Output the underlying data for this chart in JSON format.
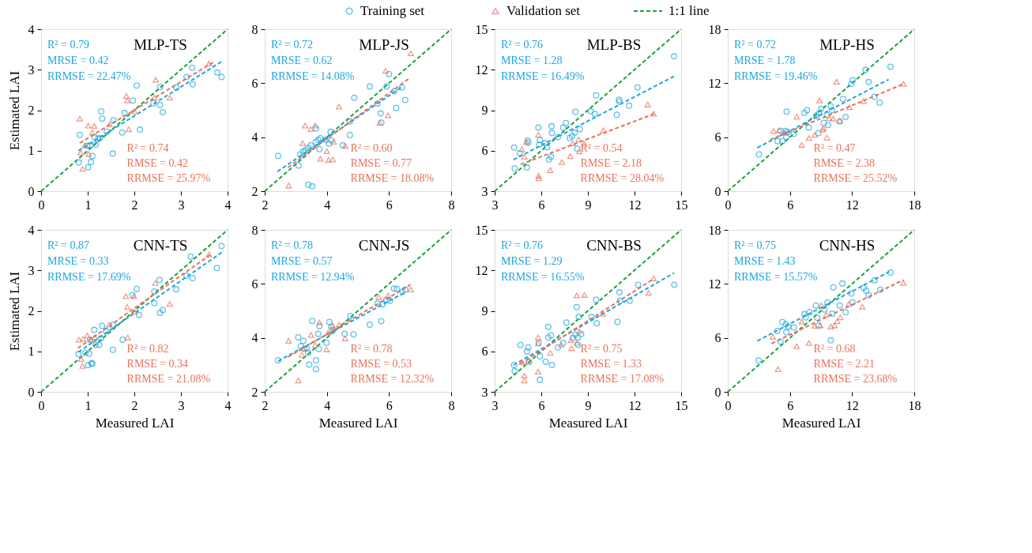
{
  "chart_data": [
    {
      "type": "scatter",
      "title": "MLP-TS",
      "ylabel": "Estimated LAI",
      "xlim": [
        0,
        4
      ],
      "ylim": [
        0,
        4
      ],
      "xticks": [
        0,
        1,
        2,
        3,
        4
      ],
      "yticks": [
        0,
        1,
        2,
        3,
        4
      ],
      "legend": "top",
      "annotations": [
        "R² = 0.79",
        "MRSE = 0.42",
        "RRMSE = 22.47%",
        "R² = 0.74",
        "RMSE = 0.42",
        "RRMSE = 25.97%"
      ],
      "series": [
        {
          "name": "Training set",
          "type": "scatter",
          "marker": "circle",
          "color": "#1fa6e0",
          "x": [
            0.83,
            0.81,
            1.01,
            1.07,
            1.1,
            0.99,
            1.05,
            1.15,
            1.17,
            1.21,
            1.26,
            1.29,
            1.31,
            1.41,
            1.55,
            1.54,
            1.74,
            1.79,
            1.97,
            2.05,
            2.12,
            2.41,
            2.55,
            2.55,
            2.61,
            2.9,
            3.12,
            3.24,
            3.25,
            3.78,
            3.87
          ],
          "values": [
            1.39,
            0.71,
            0.59,
            0.72,
            0.87,
            1.12,
            1.13,
            1.33,
            1.15,
            1.29,
            1.31,
            1.97,
            1.79,
            1.47,
            1.75,
            0.93,
            1.45,
            1.93,
            2.24,
            2.61,
            1.52,
            2.17,
            2.57,
            2.13,
            1.95,
            2.56,
            2.82,
            3.05,
            2.64,
            2.93,
            2.82
          ]
        },
        {
          "name": "Validation set",
          "type": "scatter",
          "marker": "triangle",
          "color": "#e8735c",
          "x": [
            0.83,
            0.89,
            0.85,
            0.94,
            1.01,
            1.02,
            1.1,
            1.14,
            1.47,
            1.83,
            1.85,
            1.88,
            2.0,
            2.43,
            2.46,
            2.76,
            3.6
          ],
          "values": [
            1.79,
            0.55,
            0.95,
            1.13,
            1.62,
            0.92,
            1.45,
            1.61,
            1.65,
            2.35,
            2.24,
            1.53,
            1.97,
            2.31,
            2.75,
            2.31,
            3.15
          ]
        },
        {
          "name": "1:1 line",
          "type": "line",
          "line_style": "dashed",
          "color": "#1aa23a",
          "x": [
            0,
            4
          ],
          "values": [
            0,
            4
          ]
        },
        {
          "type": "line",
          "line_style": "dashed",
          "color": "#1fa6e0",
          "x": [
            0.8,
            3.9
          ],
          "values": [
            1.0,
            3.22
          ]
        },
        {
          "type": "line",
          "line_style": "dashed",
          "color": "#e8735c",
          "x": [
            0.83,
            3.73
          ],
          "values": [
            1.19,
            3.21
          ]
        }
      ]
    },
    {
      "type": "scatter",
      "title": "MLP-JS",
      "xlim": [
        2,
        8
      ],
      "ylim": [
        2,
        8
      ],
      "xticks": [
        2,
        4,
        6,
        8
      ],
      "yticks": [
        2,
        4,
        6,
        8
      ],
      "annotations": [
        "R² = 0.72",
        "MRSE = 0.62",
        "RRMSE = 14.08%",
        "R² = 0.60",
        "RMSE = 0.77",
        "RRMSE = 18.08%"
      ],
      "series": [
        {
          "type": "scatter",
          "marker": "circle",
          "color": "#1fa6e0",
          "x": [
            2.43,
            3.09,
            3.14,
            3.24,
            3.31,
            3.4,
            3.48,
            3.4,
            3.53,
            3.65,
            3.65,
            3.72,
            3.79,
            3.76,
            3.95,
            4.07,
            4.12,
            4.14,
            4.51,
            4.74,
            4.74,
            4.88,
            5.38,
            5.63,
            5.73,
            5.75,
            5.92,
            6.0,
            6.17,
            6.23,
            6.42,
            6.52
          ],
          "values": [
            3.31,
            2.95,
            3.36,
            3.46,
            3.52,
            3.6,
            3.7,
            2.24,
            2.18,
            4.33,
            3.82,
            3.9,
            3.96,
            3.56,
            3.9,
            3.76,
            4.2,
            3.88,
            3.7,
            4.08,
            4.58,
            5.46,
            5.88,
            5.25,
            4.88,
            4.54,
            5.88,
            6.34,
            5.7,
            5.08,
            5.84,
            5.38
          ]
        },
        {
          "type": "scatter",
          "marker": "triangle",
          "color": "#e8735c",
          "x": [
            2.77,
            3.22,
            3.3,
            3.48,
            3.62,
            3.79,
            4.0,
            4.05,
            4.19,
            4.22,
            4.39,
            4.59,
            5.7,
            5.89,
            5.97,
            6.7
          ],
          "values": [
            2.21,
            3.78,
            4.43,
            4.3,
            4.43,
            3.2,
            3.48,
            3.16,
            3.18,
            3.83,
            5.13,
            3.68,
            4.53,
            6.46,
            4.81,
            7.11
          ]
        },
        {
          "type": "line",
          "line_style": "dashed",
          "color": "#1aa23a",
          "x": [
            2,
            8
          ],
          "values": [
            2,
            8
          ]
        },
        {
          "type": "line",
          "line_style": "dashed",
          "color": "#1fa6e0",
          "x": [
            2.41,
            6.44
          ],
          "values": [
            2.73,
            5.88
          ]
        },
        {
          "type": "line",
          "line_style": "dashed",
          "color": "#e8735c",
          "x": [
            2.75,
            6.65
          ],
          "values": [
            2.88,
            6.18
          ]
        }
      ]
    },
    {
      "type": "scatter",
      "title": "MLP-BS",
      "xlim": [
        3,
        15
      ],
      "ylim": [
        3,
        15
      ],
      "xticks": [
        3,
        6,
        9,
        12,
        15
      ],
      "yticks": [
        3,
        6,
        9,
        12,
        15
      ],
      "annotations": [
        "R² = 0.76",
        "MRSE = 1.28",
        "RRMSE = 16.49%",
        "R² = 0.54",
        "RMSE = 2.18",
        "RRMSE = 28.04%"
      ],
      "series": [
        {
          "type": "scatter",
          "marker": "circle",
          "color": "#1fa6e0",
          "x": [
            4.25,
            4.29,
            4.62,
            5.12,
            5.16,
            5.08,
            5.81,
            5.91,
            5.87,
            6.24,
            6.37,
            6.49,
            6.62,
            6.66,
            6.68,
            7.07,
            7.41,
            7.58,
            7.83,
            7.98,
            8.15,
            8.19,
            8.32,
            8.48,
            9.19,
            9.44,
            9.53,
            10.86,
            10.99,
            11.03,
            11.65,
            12.19,
            14.54
          ],
          "values": [
            6.23,
            4.68,
            5.83,
            6.75,
            6.59,
            4.75,
            7.71,
            6.78,
            6.45,
            6.55,
            6.25,
            5.35,
            5.55,
            7.81,
            7.31,
            7.01,
            7.71,
            8.05,
            6.94,
            7.08,
            7.34,
            8.88,
            6.15,
            7.6,
            8.92,
            8.72,
            10.1,
            8.66,
            9.78,
            9.65,
            9.33,
            10.68,
            12.99
          ]
        },
        {
          "type": "scatter",
          "marker": "triangle",
          "color": "#e8735c",
          "x": [
            4.75,
            4.91,
            5.04,
            5.81,
            5.83,
            5.83,
            6.58,
            7.32,
            7.86,
            8.03,
            8.41,
            8.45,
            8.76,
            9.99,
            12.85,
            13.23
          ],
          "values": [
            6.11,
            5.55,
            6.65,
            7.18,
            4.15,
            3.96,
            4.55,
            5.15,
            5.59,
            6.55,
            6.84,
            5.95,
            6.51,
            7.51,
            9.42,
            8.74
          ]
        },
        {
          "type": "line",
          "line_style": "dashed",
          "color": "#1aa23a",
          "x": [
            3,
            15
          ],
          "values": [
            3,
            15
          ]
        },
        {
          "type": "line",
          "line_style": "dashed",
          "color": "#1fa6e0",
          "x": [
            4.21,
            14.56
          ],
          "values": [
            5.33,
            11.52
          ]
        },
        {
          "type": "line",
          "line_style": "dashed",
          "color": "#e8735c",
          "x": [
            4.66,
            13.27
          ],
          "values": [
            4.98,
            8.73
          ]
        }
      ]
    },
    {
      "type": "scatter",
      "title": "MLP-HS",
      "xlim": [
        0,
        18
      ],
      "ylim": [
        0,
        18
      ],
      "xticks": [
        0,
        6,
        12,
        18
      ],
      "yticks": [
        0,
        6,
        12,
        18
      ],
      "annotations": [
        "R² = 0.72",
        "MRSE = 1.78",
        "RRMSE = 19.46%",
        "R² = 0.47",
        "RMSE = 2.38",
        "RRMSE = 25.52%"
      ],
      "series": [
        {
          "type": "scatter",
          "marker": "circle",
          "color": "#1fa6e0",
          "x": [
            3.01,
            4.81,
            5.28,
            5.09,
            5.59,
            5.75,
            5.65,
            5.68,
            6.37,
            7.39,
            7.64,
            7.83,
            8.54,
            8.76,
            8.82,
            9.01,
            9.25,
            9.57,
            9.69,
            9.94,
            10.06,
            10.81,
            11.12,
            11.37,
            11.93,
            12.05,
            13.3,
            13.6,
            14.16,
            14.66,
            15.71
          ],
          "values": [
            4.08,
            5.57,
            5.57,
            6.7,
            6.7,
            6.56,
            6.02,
            8.85,
            6.36,
            8.7,
            9.0,
            7.06,
            8.4,
            6.45,
            8.64,
            9.15,
            7.6,
            8.46,
            7.36,
            9.44,
            9.0,
            7.75,
            10.25,
            8.25,
            11.92,
            12.34,
            13.47,
            12.13,
            10.49,
            9.83,
            13.83
          ]
        },
        {
          "type": "scatter",
          "marker": "triangle",
          "color": "#e8735c",
          "x": [
            4.41,
            4.97,
            5.53,
            6.65,
            7.14,
            7.83,
            8.39,
            8.85,
            9.16,
            9.25,
            9.57,
            9.78,
            10.19,
            10.5,
            10.81,
            11.74,
            13.11,
            16.96
          ],
          "values": [
            6.7,
            6.79,
            6.47,
            8.28,
            5.15,
            5.9,
            6.26,
            10.07,
            6.85,
            7.03,
            5.96,
            8.13,
            8.05,
            12.16,
            7.84,
            9.33,
            10.01,
            11.92
          ]
        },
        {
          "type": "line",
          "line_style": "dashed",
          "color": "#1aa23a",
          "x": [
            0,
            18
          ],
          "values": [
            0,
            18
          ]
        },
        {
          "type": "line",
          "line_style": "dashed",
          "color": "#1fa6e0",
          "x": [
            2.86,
            15.53
          ],
          "values": [
            4.83,
            12.42
          ]
        },
        {
          "type": "line",
          "line_style": "dashed",
          "color": "#e8735c",
          "x": [
            4.1,
            16.96
          ],
          "values": [
            5.72,
            11.92
          ]
        }
      ]
    },
    {
      "type": "scatter",
      "title": "CNN-TS",
      "xlabel": "Measured LAI",
      "ylabel": "Estimated LAI",
      "xlim": [
        0,
        4
      ],
      "ylim": [
        0,
        4
      ],
      "xticks": [
        0,
        1,
        2,
        3,
        4
      ],
      "yticks": [
        0,
        1,
        2,
        3,
        4
      ],
      "annotations": [
        "R² = 0.87",
        "MRSE = 0.33",
        "RRMSE = 17.69%",
        "R² = 0.82",
        "RMSE = 0.34",
        "RRMSE = 21.08%"
      ],
      "series": [
        {
          "type": "scatter",
          "marker": "circle",
          "color": "#1fa6e0",
          "x": [
            0.8,
            0.95,
            1.03,
            1.01,
            1.08,
            1.1,
            1.05,
            1.14,
            1.17,
            1.25,
            1.28,
            1.31,
            1.39,
            1.54,
            1.54,
            1.75,
            1.96,
            2.05,
            2.1,
            2.43,
            2.43,
            2.54,
            2.55,
            2.61,
            2.9,
            3.12,
            3.21,
            3.25,
            3.77,
            3.87
          ],
          "values": [
            0.93,
            0.96,
            0.94,
            0.66,
            0.7,
            0.7,
            1.29,
            1.53,
            1.16,
            1.16,
            1.32,
            1.63,
            1.5,
            1.04,
            1.66,
            1.29,
            2.39,
            2.54,
            1.9,
            2.48,
            2.19,
            2.76,
            1.95,
            2.02,
            2.53,
            2.87,
            3.34,
            2.81,
            3.06,
            3.6
          ]
        },
        {
          "type": "scatter",
          "marker": "triangle",
          "color": "#e8735c",
          "x": [
            0.81,
            0.86,
            0.89,
            0.9,
            0.99,
            1.07,
            1.15,
            1.46,
            1.82,
            1.85,
            1.99,
            1.86,
            2.0,
            2.45,
            2.76,
            3.6
          ],
          "values": [
            1.29,
            0.81,
            0.64,
            1.31,
            1.39,
            1.29,
            1.35,
            1.66,
            2.36,
            2.1,
            2.36,
            1.34,
            1.98,
            2.69,
            2.17,
            3.39
          ]
        },
        {
          "type": "line",
          "line_style": "dashed",
          "color": "#1aa23a",
          "x": [
            0,
            4
          ],
          "values": [
            0,
            4
          ]
        },
        {
          "type": "line",
          "line_style": "dashed",
          "color": "#1fa6e0",
          "x": [
            0.8,
            3.92
          ],
          "values": [
            0.98,
            3.48
          ]
        },
        {
          "type": "line",
          "line_style": "dashed",
          "color": "#e8735c",
          "x": [
            0.79,
            3.66
          ],
          "values": [
            1.08,
            3.41
          ]
        }
      ]
    },
    {
      "type": "scatter",
      "title": "CNN-JS",
      "xlabel": "Measured LAI",
      "xlim": [
        2,
        8
      ],
      "ylim": [
        2,
        8
      ],
      "xticks": [
        2,
        4,
        6,
        8
      ],
      "yticks": [
        2,
        4,
        6,
        8
      ],
      "annotations": [
        "R² = 0.78",
        "MRSE = 0.57",
        "RRMSE = 12.94%",
        "R² = 0.78",
        "RMSE = 0.53",
        "RRMSE = 12.32%"
      ],
      "series": [
        {
          "type": "scatter",
          "marker": "circle",
          "color": "#1fa6e0",
          "x": [
            2.43,
            3.08,
            3.16,
            3.24,
            3.28,
            3.35,
            3.4,
            3.43,
            3.53,
            3.65,
            3.65,
            3.74,
            3.72,
            3.76,
            3.99,
            4.08,
            4.14,
            4.2,
            4.57,
            4.76,
            4.86,
            5.38,
            5.63,
            5.75,
            5.79,
            5.92,
            6.03,
            6.16,
            6.25,
            6.43,
            6.52
          ],
          "values": [
            3.17,
            4.02,
            3.69,
            3.89,
            3.59,
            3.61,
            3.44,
            3.01,
            4.63,
            3.17,
            2.84,
            3.59,
            4.15,
            4.44,
            3.82,
            4.59,
            4.41,
            4.29,
            4.15,
            4.81,
            4.13,
            4.49,
            5.27,
            4.62,
            5.24,
            5.41,
            5.37,
            5.83,
            5.81,
            5.71,
            5.79
          ]
        },
        {
          "type": "scatter",
          "marker": "triangle",
          "color": "#e8735c",
          "x": [
            2.77,
            3.08,
            3.2,
            3.25,
            3.49,
            3.62,
            3.76,
            3.99,
            4.04,
            4.18,
            4.39,
            4.59,
            5.67,
            5.97,
            6.7
          ],
          "values": [
            3.89,
            2.42,
            3.37,
            3.61,
            4.11,
            3.73,
            4.57,
            3.57,
            4.2,
            4.45,
            4.49,
            3.98,
            5.51,
            5.57,
            5.79
          ]
        },
        {
          "type": "line",
          "line_style": "dashed",
          "color": "#1aa23a",
          "x": [
            2,
            8
          ],
          "values": [
            2,
            8
          ]
        },
        {
          "type": "line",
          "line_style": "dashed",
          "color": "#1fa6e0",
          "x": [
            2.43,
            6.54
          ],
          "values": [
            3.14,
            5.7
          ]
        },
        {
          "type": "line",
          "line_style": "dashed",
          "color": "#e8735c",
          "x": [
            2.75,
            6.69
          ],
          "values": [
            3.29,
            5.97
          ]
        }
      ]
    },
    {
      "type": "scatter",
      "title": "CNN-BS",
      "xlabel": "Measured LAI",
      "xlim": [
        3,
        15
      ],
      "ylim": [
        3,
        15
      ],
      "xticks": [
        3,
        6,
        9,
        12,
        15
      ],
      "yticks": [
        3,
        6,
        9,
        12,
        15
      ],
      "annotations": [
        "R² = 0.76",
        "MRSE = 1.29",
        "RRMSE = 16.55%",
        "R² = 0.75",
        "RMSE = 1.33",
        "RRMSE = 17.08%"
      ],
      "series": [
        {
          "type": "scatter",
          "marker": "circle",
          "color": "#1fa6e0",
          "x": [
            4.25,
            4.29,
            4.66,
            5.08,
            5.16,
            5.22,
            5.83,
            5.91,
            5.91,
            6.28,
            6.45,
            6.45,
            6.62,
            6.68,
            7.07,
            7.41,
            7.62,
            8.03,
            8.19,
            8.28,
            8.36,
            8.41,
            8.36,
            8.57,
            9.24,
            9.53,
            9.57,
            10.9,
            11.03,
            11.07,
            11.69,
            12.23,
            14.56
          ],
          "values": [
            4.99,
            4.53,
            6.47,
            5.99,
            6.29,
            5.23,
            6.63,
            5.63,
            3.9,
            5.23,
            7.82,
            7.03,
            7.19,
            4.99,
            6.29,
            6.63,
            8.14,
            6.99,
            7.23,
            9.28,
            7.03,
            8.54,
            6.49,
            7.29,
            8.54,
            9.82,
            8.08,
            8.18,
            10.37,
            9.74,
            9.74,
            10.93,
            10.93
          ]
        },
        {
          "type": "scatter",
          "marker": "triangle",
          "color": "#e8735c",
          "x": [
            4.75,
            4.91,
            4.91,
            5.16,
            5.79,
            5.79,
            5.79,
            6.58,
            7.28,
            7.95,
            7.91,
            8.28,
            8.28,
            8.78,
            8.45,
            9.94,
            12.9,
            13.23
          ],
          "values": [
            5.19,
            4.2,
            3.84,
            5.29,
            7.03,
            6.59,
            4.49,
            5.89,
            6.49,
            6.23,
            6.83,
            6.63,
            10.14,
            10.18,
            7.49,
            8.78,
            10.33,
            11.41
          ]
        },
        {
          "type": "line",
          "line_style": "dashed",
          "color": "#1aa23a",
          "x": [
            3,
            15
          ],
          "values": [
            3,
            15
          ]
        },
        {
          "type": "line",
          "line_style": "dashed",
          "color": "#1fa6e0",
          "x": [
            4.21,
            14.56
          ],
          "values": [
            4.99,
            11.81
          ]
        },
        {
          "type": "line",
          "line_style": "dashed",
          "color": "#e8735c",
          "x": [
            4.66,
            13.23
          ],
          "values": [
            5.09,
            11.37
          ]
        }
      ]
    },
    {
      "type": "scatter",
      "title": "CNN-HS",
      "xlabel": "Measured LAI",
      "xlim": [
        0,
        18
      ],
      "ylim": [
        0,
        18
      ],
      "xticks": [
        0,
        6,
        12,
        18
      ],
      "yticks": [
        0,
        6,
        12,
        18
      ],
      "annotations": [
        "R² = 0.75",
        "MRSE = 1.43",
        "RRMSE = 15.57%",
        "R² = 0.68",
        "RMSE = 2.21",
        "RRMSE = 23.68%"
      ],
      "series": [
        {
          "type": "scatter",
          "marker": "circle",
          "color": "#1fa6e0",
          "x": [
            2.98,
            4.78,
            5.09,
            5.28,
            5.59,
            5.65,
            5.84,
            6.37,
            7.39,
            7.52,
            7.89,
            8.51,
            8.63,
            8.76,
            9.32,
            9.63,
            9.94,
            10.09,
            10.19,
            10.81,
            11.06,
            11.37,
            11.93,
            12.05,
            13.11,
            13.35,
            13.6,
            14.16,
            14.72,
            15.71
          ],
          "values": [
            3.49,
            6.77,
            5.57,
            7.75,
            7.51,
            6.62,
            7.27,
            7.15,
            8.64,
            8.28,
            8.85,
            9.59,
            8.25,
            7.36,
            9.15,
            9.95,
            5.72,
            8.7,
            11.62,
            9.59,
            12.04,
            8.85,
            10.93,
            9.95,
            11.56,
            11.26,
            10.73,
            12.4,
            11.35,
            13.26
          ]
        },
        {
          "type": "scatter",
          "marker": "triangle",
          "color": "#e8735c",
          "x": [
            4.35,
            4.84,
            6.65,
            7.14,
            7.83,
            8.39,
            8.94,
            9.01,
            9.5,
            9.94,
            10.31,
            10.56,
            10.87,
            11.68,
            12.98,
            16.96
          ],
          "values": [
            6.14,
            2.5,
            5.07,
            7.81,
            5.42,
            7.33,
            7.39,
            9.62,
            8.58,
            7.24,
            7.39,
            7.84,
            8.28,
            9.77,
            9.47,
            12.1
          ]
        },
        {
          "type": "line",
          "line_style": "dashed",
          "color": "#1aa23a",
          "x": [
            0,
            18
          ],
          "values": [
            0,
            18
          ]
        },
        {
          "type": "line",
          "line_style": "dashed",
          "color": "#1fa6e0",
          "x": [
            2.86,
            15.59
          ],
          "values": [
            5.66,
            13.35
          ]
        },
        {
          "type": "line",
          "line_style": "dashed",
          "color": "#e8735c",
          "x": [
            4.22,
            16.96
          ],
          "values": [
            5.37,
            12.43
          ]
        }
      ]
    }
  ]
}
